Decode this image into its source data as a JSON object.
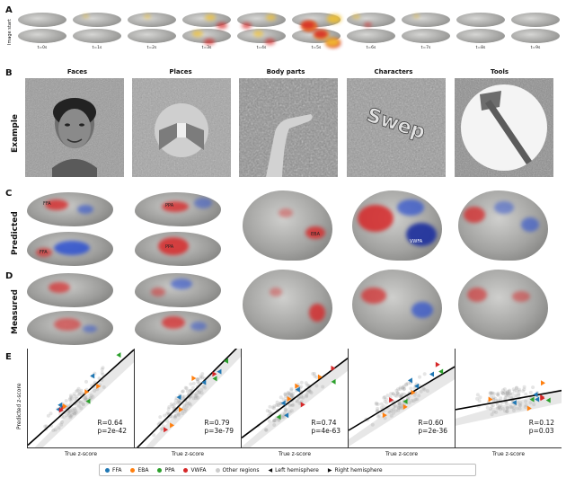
{
  "panels": {
    "A": "A",
    "B": "B",
    "C": "C",
    "D": "D",
    "E": "E"
  },
  "row_labels": {
    "image_start": "Image start",
    "example": "Example",
    "predicted": "Predicted",
    "measured": "Measured",
    "predicted_zscore": "Predicted z-score"
  },
  "time_labels": [
    "t=0s",
    "t=1s",
    "t=2s",
    "t=3s",
    "t=4s",
    "t=5s",
    "t=6s",
    "t=7s",
    "t=8s",
    "t=9s"
  ],
  "categories": [
    "Faces",
    "Places",
    "Body parts",
    "Characters",
    "Tools"
  ],
  "region_labels": {
    "ffa": "FFA",
    "ppa": "PPA",
    "eba": "EBA",
    "vwfa": "VWFA"
  },
  "characters_word": "Swep",
  "stats": [
    {
      "R": "R=0.64",
      "p": "p=2e-42"
    },
    {
      "R": "R=0.79",
      "p": "p=3e-79"
    },
    {
      "R": "R=0.74",
      "p": "p=4e-63"
    },
    {
      "R": "R=0.60",
      "p": "p=2e-36"
    },
    {
      "R": "R=0.12",
      "p": "p=0.03"
    }
  ],
  "xlabel": "True z-score",
  "legend": [
    {
      "label": "FFA",
      "color": "#1f77b4",
      "marker": "dot"
    },
    {
      "label": "EBA",
      "color": "#ff7f0e",
      "marker": "dot"
    },
    {
      "label": "PPA",
      "color": "#2ca02c",
      "marker": "dot"
    },
    {
      "label": "VWFA",
      "color": "#d62728",
      "marker": "dot"
    },
    {
      "label": "Other regions",
      "color": "#cccccc",
      "marker": "dot"
    },
    {
      "label": "Left hemisphere",
      "color": "#111111",
      "marker": "left"
    },
    {
      "label": "Right hemisphere",
      "color": "#111111",
      "marker": "right"
    }
  ],
  "colors": {
    "activation_red": "#d62728",
    "activation_blue": "#2b4fcf",
    "heat_yellow": "#f2c12e"
  }
}
